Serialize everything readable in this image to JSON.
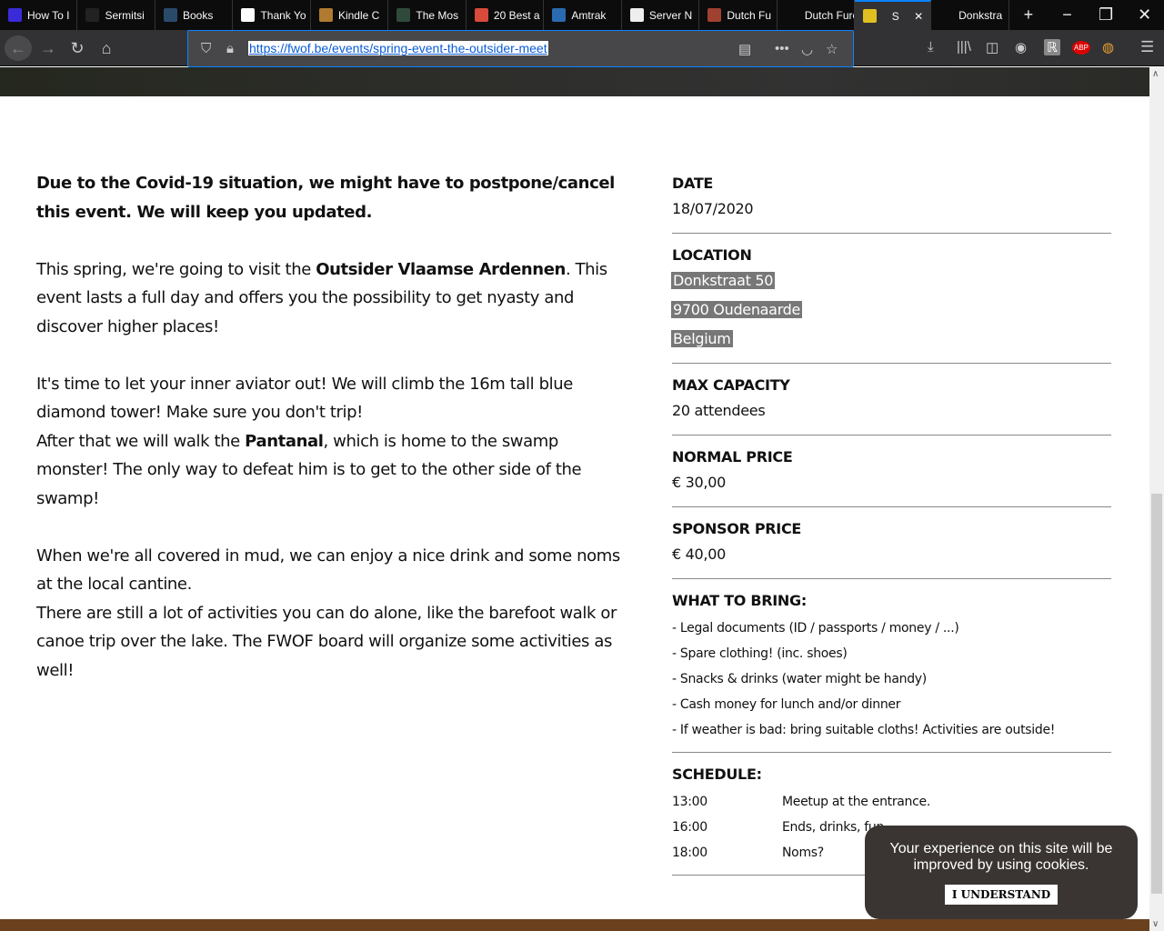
{
  "browser": {
    "tabs": [
      {
        "label": "How To I",
        "color": "#3a2bd8"
      },
      {
        "label": "Sermitsi",
        "color": "#222"
      },
      {
        "label": "Books",
        "color": "#2a4a6a"
      },
      {
        "label": "Thank Yo",
        "color": "#fff"
      },
      {
        "label": "Kindle C",
        "color": "#b07a30"
      },
      {
        "label": "The Mos",
        "color": "#2f4a3a"
      },
      {
        "label": "20 Best a",
        "color": "#d84a3a"
      },
      {
        "label": "Amtrak",
        "color": "#2a6ab0"
      },
      {
        "label": "Server N",
        "color": "#eee"
      },
      {
        "label": "Dutch Fu",
        "color": "#a04030"
      },
      {
        "label": "Dutch Furco",
        "color": "#0c0c0d"
      },
      {
        "label": "S",
        "color": "#e0c020",
        "active": true
      },
      {
        "label": "Donkstra",
        "color": "#0c0c0d"
      }
    ],
    "url": "https://fwof.be/events/spring-event-the-outsider-meet",
    "accent": "#0a84ff"
  },
  "content": {
    "p1_bold": "Due to the Covid-19 situation, we might have to postpone/cancel this event. We will keep you updated.",
    "p2_a": "This spring, we're going to visit the ",
    "p2_b": "Outsider Vlaamse Ardennen",
    "p2_c": ". This event lasts a full day and offers you the possibility to get nyasty and discover higher places!",
    "p3_a": "It's time to let your inner aviator out! We will climb the 16m tall blue diamond tower! Make sure you don't trip!",
    "p3_b": "After that we will walk the ",
    "p3_c": "Pantanal",
    "p3_d": ", which is home to the swamp monster! The only way to defeat him is to get to the other side of the swamp!",
    "p4_a": "When we're all covered in mud, we can enjoy a nice drink and some noms at the local cantine.",
    "p4_b": "There are still a lot of activities you can do alone, like the barefoot walk or canoe trip over the lake. The FWOF board will organize some activities as well!"
  },
  "details": {
    "date_label": "DATE",
    "date": "18/07/2020",
    "location_label": "LOCATION",
    "location": [
      "Donkstraat 50",
      "9700 Oudenaarde",
      "Belgium"
    ],
    "capacity_label": "MAX CAPACITY",
    "capacity": "20 attendees",
    "normal_label": "NORMAL PRICE",
    "normal": "€ 30,00",
    "sponsor_label": "SPONSOR PRICE",
    "sponsor": "€ 40,00",
    "bring_label": "WHAT TO BRING:",
    "bring": [
      "- Legal documents (ID / passports / money / ...)",
      "- Spare clothing! (inc. shoes)",
      "- Snacks & drinks (water might be handy)",
      "- Cash money for lunch and/or dinner",
      "- If weather is bad: bring suitable cloths! Activities are outside!"
    ],
    "schedule_label": "SCHEDULE:",
    "schedule": [
      {
        "time": "13:00",
        "what": "Meetup at the entrance."
      },
      {
        "time": "16:00",
        "what": "Ends, drinks, fun."
      },
      {
        "time": "18:00",
        "what": "Noms?"
      }
    ]
  },
  "cookie": {
    "text": "Your experience on this site will be improved by using cookies.",
    "button": "I UNDERSTAND"
  }
}
